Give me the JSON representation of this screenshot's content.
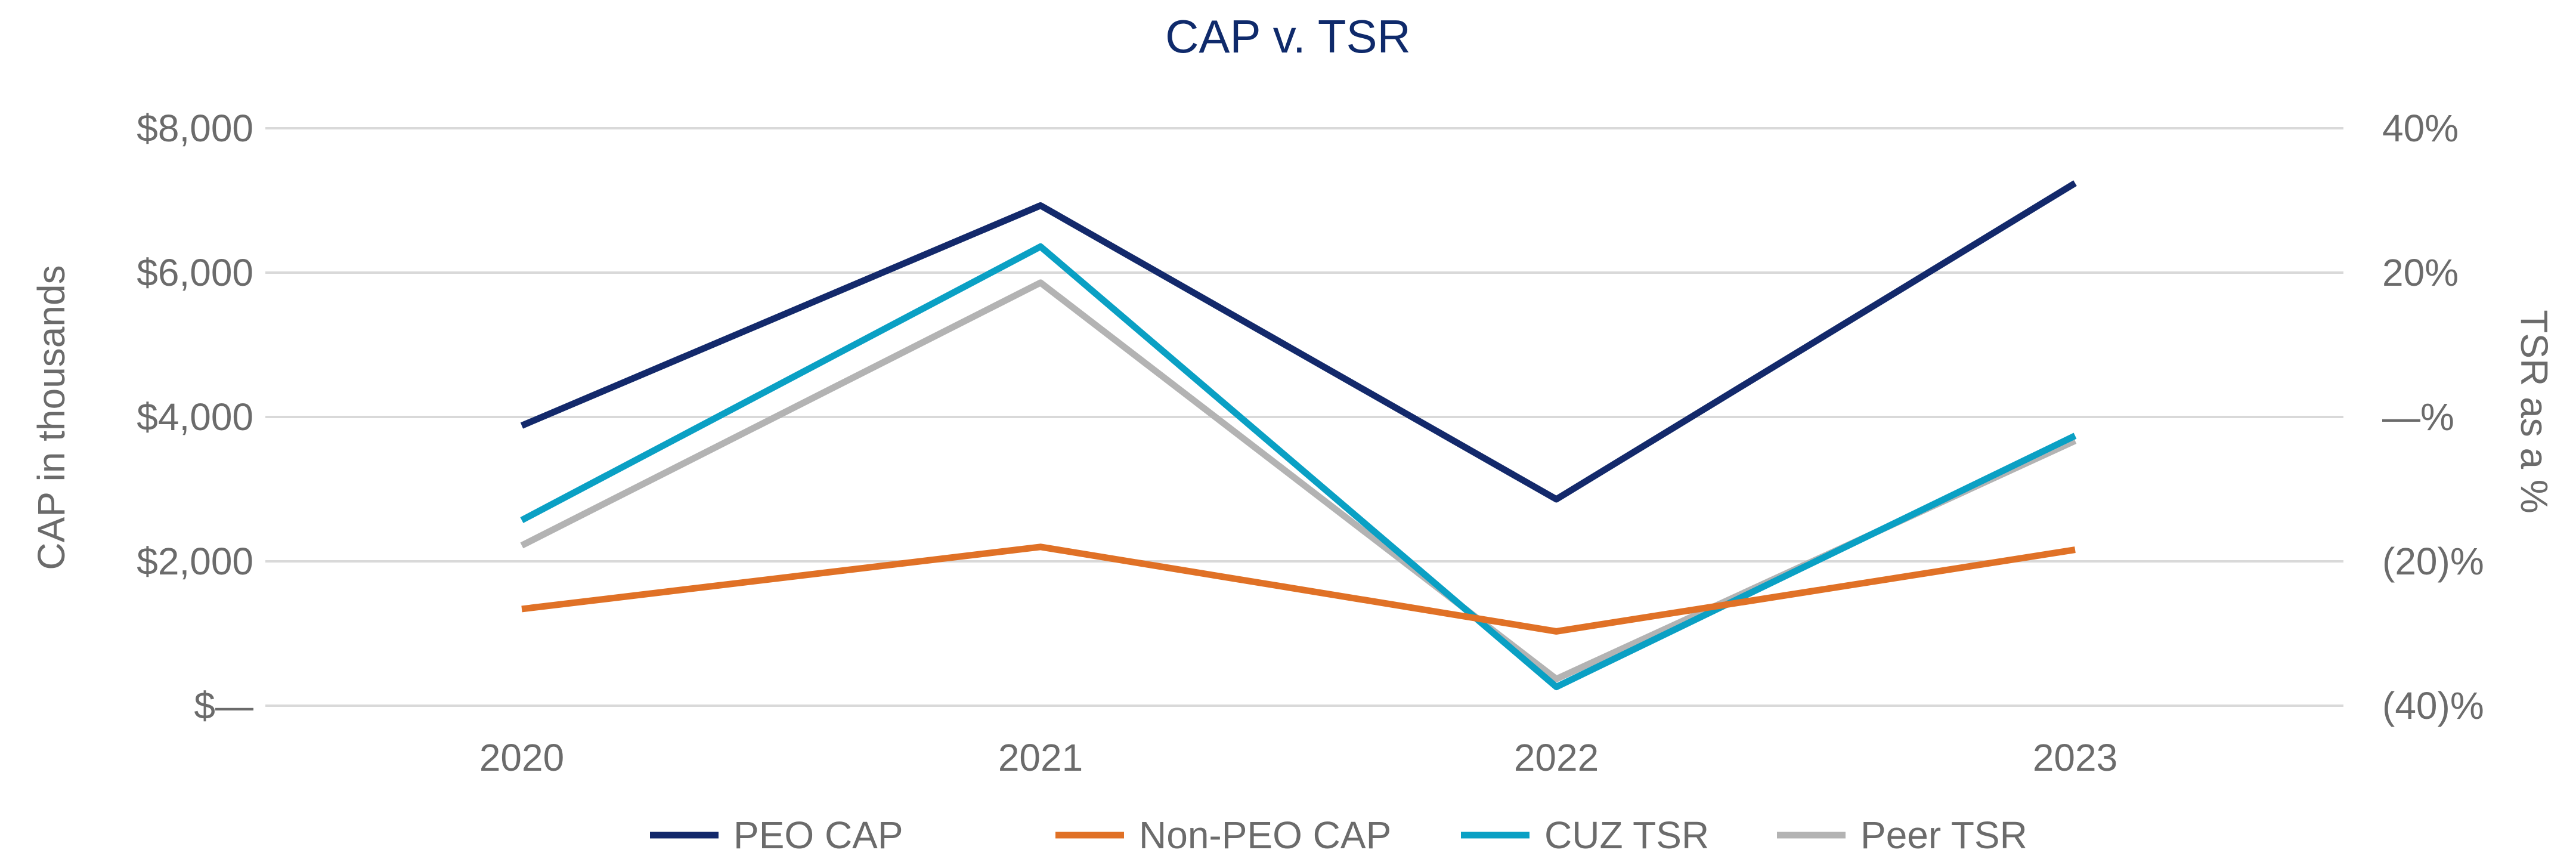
{
  "chart_data": {
    "type": "line",
    "title": "CAP v. TSR",
    "categories": [
      "2020",
      "2021",
      "2022",
      "2023"
    ],
    "ylabel": "CAP in thousands",
    "y2label": "TSR as a %",
    "ylim": [
      0,
      8000
    ],
    "y2lim": [
      -40,
      40
    ],
    "yticks": [
      {
        "value": 0,
        "label": "$—"
      },
      {
        "value": 2000,
        "label": "$2,000"
      },
      {
        "value": 4000,
        "label": "$4,000"
      },
      {
        "value": 6000,
        "label": "$6,000"
      },
      {
        "value": 8000,
        "label": "$8,000"
      }
    ],
    "y2ticks": [
      {
        "value": -40,
        "label": "(40)%"
      },
      {
        "value": -20,
        "label": "(20)%"
      },
      {
        "value": 0,
        "label": "—%"
      },
      {
        "value": 20,
        "label": "20%"
      },
      {
        "value": 40,
        "label": "40%"
      }
    ],
    "grid": true,
    "legend_position": "bottom",
    "series": [
      {
        "name": "PEO CAP",
        "axis": "left",
        "color": "#13296b",
        "values": [
          3880,
          6930,
          2860,
          7240
        ]
      },
      {
        "name": "Non-PEO CAP",
        "axis": "left",
        "color": "#e07126",
        "values": [
          1340,
          2200,
          1030,
          2160
        ]
      },
      {
        "name": "CUZ TSR",
        "axis": "right",
        "color": "#0aa0c4",
        "values": [
          -14.3,
          23.6,
          -37.4,
          -2.6
        ]
      },
      {
        "name": "Peer TSR",
        "axis": "right",
        "color": "#b3b3b3",
        "values": [
          -17.8,
          18.6,
          -36.3,
          -3.3
        ]
      }
    ]
  }
}
